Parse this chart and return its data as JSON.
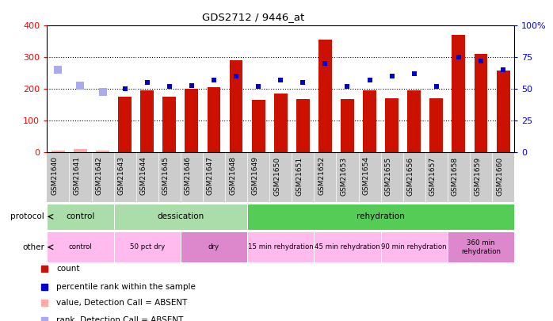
{
  "title": "GDS2712 / 9446_at",
  "samples": [
    "GSM21640",
    "GSM21641",
    "GSM21642",
    "GSM21643",
    "GSM21644",
    "GSM21645",
    "GSM21646",
    "GSM21647",
    "GSM21648",
    "GSM21649",
    "GSM21650",
    "GSM21651",
    "GSM21652",
    "GSM21653",
    "GSM21654",
    "GSM21655",
    "GSM21656",
    "GSM21657",
    "GSM21658",
    "GSM21659",
    "GSM21660"
  ],
  "count_values": [
    5,
    12,
    5,
    175,
    195,
    175,
    200,
    205,
    290,
    165,
    185,
    168,
    355,
    168,
    195,
    170,
    195,
    170,
    370,
    310,
    258
  ],
  "count_absent": [
    true,
    true,
    true,
    false,
    false,
    false,
    false,
    false,
    false,
    false,
    false,
    false,
    false,
    false,
    false,
    false,
    false,
    false,
    false,
    false,
    false
  ],
  "rank_values": [
    null,
    null,
    null,
    50,
    55,
    52,
    53,
    57,
    60,
    52,
    57,
    55,
    70,
    52,
    57,
    60,
    62,
    52,
    75,
    72,
    65
  ],
  "rank_absent_values": [
    65,
    53,
    48,
    null,
    null,
    null,
    null,
    null,
    null,
    null,
    null,
    null,
    null,
    null,
    null,
    null,
    null,
    null,
    null,
    null,
    null
  ],
  "left_ylim": [
    0,
    400
  ],
  "right_ylim": [
    0,
    100
  ],
  "left_yticks": [
    0,
    100,
    200,
    300,
    400
  ],
  "right_yticks": [
    0,
    25,
    50,
    75,
    100
  ],
  "right_yticklabels": [
    "0",
    "25",
    "50",
    "75",
    "100%"
  ],
  "color_bar_present": "#cc1100",
  "color_bar_absent": "#ffaaaa",
  "color_rank_present": "#0000cc",
  "color_rank_absent": "#aaaaee",
  "protocol_groups": [
    {
      "label": "control",
      "start": 0,
      "end": 2,
      "color": "#aaddaa"
    },
    {
      "label": "dessication",
      "start": 3,
      "end": 8,
      "color": "#aaddaa"
    },
    {
      "label": "rehydration",
      "start": 9,
      "end": 20,
      "color": "#55cc55"
    }
  ],
  "other_groups": [
    {
      "label": "control",
      "start": 0,
      "end": 2,
      "color": "#ffbbee"
    },
    {
      "label": "50 pct dry",
      "start": 3,
      "end": 5,
      "color": "#ffbbee"
    },
    {
      "label": "dry",
      "start": 6,
      "end": 8,
      "color": "#dd88cc"
    },
    {
      "label": "15 min rehydration",
      "start": 9,
      "end": 11,
      "color": "#ffbbee"
    },
    {
      "label": "45 min rehydration",
      "start": 12,
      "end": 14,
      "color": "#ffbbee"
    },
    {
      "label": "90 min rehydration",
      "start": 15,
      "end": 17,
      "color": "#ffbbee"
    },
    {
      "label": "360 min\nrehydration",
      "start": 18,
      "end": 20,
      "color": "#dd88cc"
    }
  ],
  "legend_items": [
    {
      "label": "count",
      "color": "#cc1100"
    },
    {
      "label": "percentile rank within the sample",
      "color": "#0000cc"
    },
    {
      "label": "value, Detection Call = ABSENT",
      "color": "#ffaaaa"
    },
    {
      "label": "rank, Detection Call = ABSENT",
      "color": "#aaaaee"
    }
  ],
  "xtick_bg": "#cccccc"
}
